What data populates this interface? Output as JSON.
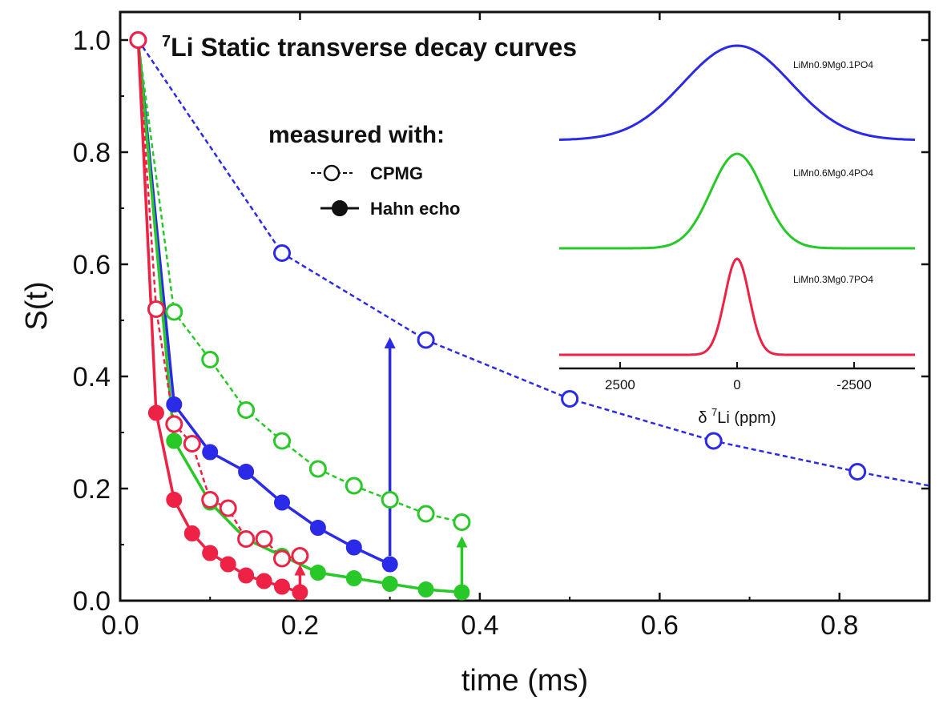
{
  "chart_data": {
    "type": "scatter",
    "title": "Li Static transverse decay curves",
    "title_superscript": "7",
    "xlabel": "time (ms)",
    "ylabel": "S(t)",
    "xlim": [
      0.0,
      0.9
    ],
    "ylim": [
      0.0,
      1.05
    ],
    "xticks": [
      "0.0",
      "0.2",
      "0.4",
      "0.6",
      "0.8"
    ],
    "yticks": [
      "0.0",
      "0.2",
      "0.4",
      "0.6",
      "0.8",
      "1.0"
    ],
    "grid": false,
    "legend": {
      "heading": "measured with:",
      "placement": "top-center",
      "entries": [
        {
          "label": "CPMG",
          "marker": "open-circle"
        },
        {
          "label": "Hahn echo",
          "marker": "filled-circle"
        }
      ]
    },
    "colors": {
      "blue": "#2a2ae8",
      "green": "#28c828",
      "red": "#ee2244"
    },
    "series": [
      {
        "color": "blue",
        "method": "CPMG",
        "x": [
          0.02,
          0.18,
          0.34,
          0.5,
          0.66,
          0.82,
          0.9
        ],
        "y": [
          1.0,
          0.62,
          0.465,
          0.36,
          0.285,
          0.23,
          0.205
        ],
        "markers": [
          true,
          true,
          true,
          true,
          true,
          true,
          false
        ]
      },
      {
        "color": "blue",
        "method": "Hahn echo",
        "x": [
          0.02,
          0.06,
          0.1,
          0.14,
          0.18,
          0.22,
          0.26,
          0.3
        ],
        "y": [
          1.0,
          0.35,
          0.265,
          0.23,
          0.175,
          0.13,
          0.095,
          0.065
        ],
        "markers": [
          false,
          true,
          true,
          true,
          true,
          true,
          true,
          true
        ]
      },
      {
        "color": "green",
        "method": "CPMG",
        "x": [
          0.02,
          0.06,
          0.1,
          0.14,
          0.18,
          0.22,
          0.26,
          0.3,
          0.34,
          0.38
        ],
        "y": [
          1.0,
          0.515,
          0.43,
          0.34,
          0.285,
          0.235,
          0.205,
          0.18,
          0.155,
          0.14
        ],
        "markers": [
          false,
          true,
          true,
          true,
          true,
          true,
          true,
          true,
          true,
          true
        ]
      },
      {
        "color": "green",
        "method": "Hahn echo",
        "x": [
          0.02,
          0.06,
          0.1,
          0.14,
          0.18,
          0.22,
          0.26,
          0.3,
          0.34,
          0.38
        ],
        "y": [
          1.0,
          0.285,
          0.175,
          0.11,
          0.08,
          0.05,
          0.04,
          0.03,
          0.02,
          0.015
        ],
        "markers": [
          false,
          true,
          true,
          true,
          true,
          true,
          true,
          true,
          true,
          true
        ]
      },
      {
        "color": "red",
        "method": "CPMG",
        "x": [
          0.02,
          0.04,
          0.06,
          0.08,
          0.1,
          0.12,
          0.14,
          0.16,
          0.18,
          0.2
        ],
        "y": [
          1.0,
          0.52,
          0.315,
          0.28,
          0.18,
          0.165,
          0.11,
          0.11,
          0.075,
          0.08
        ],
        "markers": [
          true,
          true,
          true,
          true,
          true,
          true,
          true,
          true,
          true,
          true
        ]
      },
      {
        "color": "red",
        "method": "Hahn echo",
        "x": [
          0.02,
          0.04,
          0.06,
          0.08,
          0.1,
          0.12,
          0.14,
          0.16,
          0.18,
          0.2
        ],
        "y": [
          1.0,
          0.335,
          0.18,
          0.12,
          0.085,
          0.065,
          0.045,
          0.035,
          0.025,
          0.015
        ],
        "markers": [
          false,
          true,
          true,
          true,
          true,
          true,
          true,
          true,
          true,
          true
        ]
      }
    ],
    "arrows": [
      {
        "color": "blue",
        "x": 0.3,
        "y_from": 0.08,
        "y_to": 0.47
      },
      {
        "color": "green",
        "x": 0.38,
        "y_from": 0.02,
        "y_to": 0.115
      },
      {
        "color": "red",
        "x": 0.2,
        "y_from": 0.02,
        "y_to": 0.065
      }
    ],
    "inset": {
      "xlabel": "δ Li (ppm)",
      "xlabel_superscript": "7",
      "xticks": [
        "2500",
        "0",
        "-2500"
      ],
      "xlim": [
        3800,
        -3800
      ],
      "spectra": [
        {
          "color": "blue",
          "label": "LiMn0.9Mg0.1PO4",
          "width_ppm": 1150
        },
        {
          "color": "green",
          "label": "LiMn0.6Mg0.4PO4",
          "width_ppm": 560
        },
        {
          "color": "red",
          "label": "LiMn0.3Mg0.7PO4",
          "width_ppm": 260
        }
      ]
    }
  }
}
